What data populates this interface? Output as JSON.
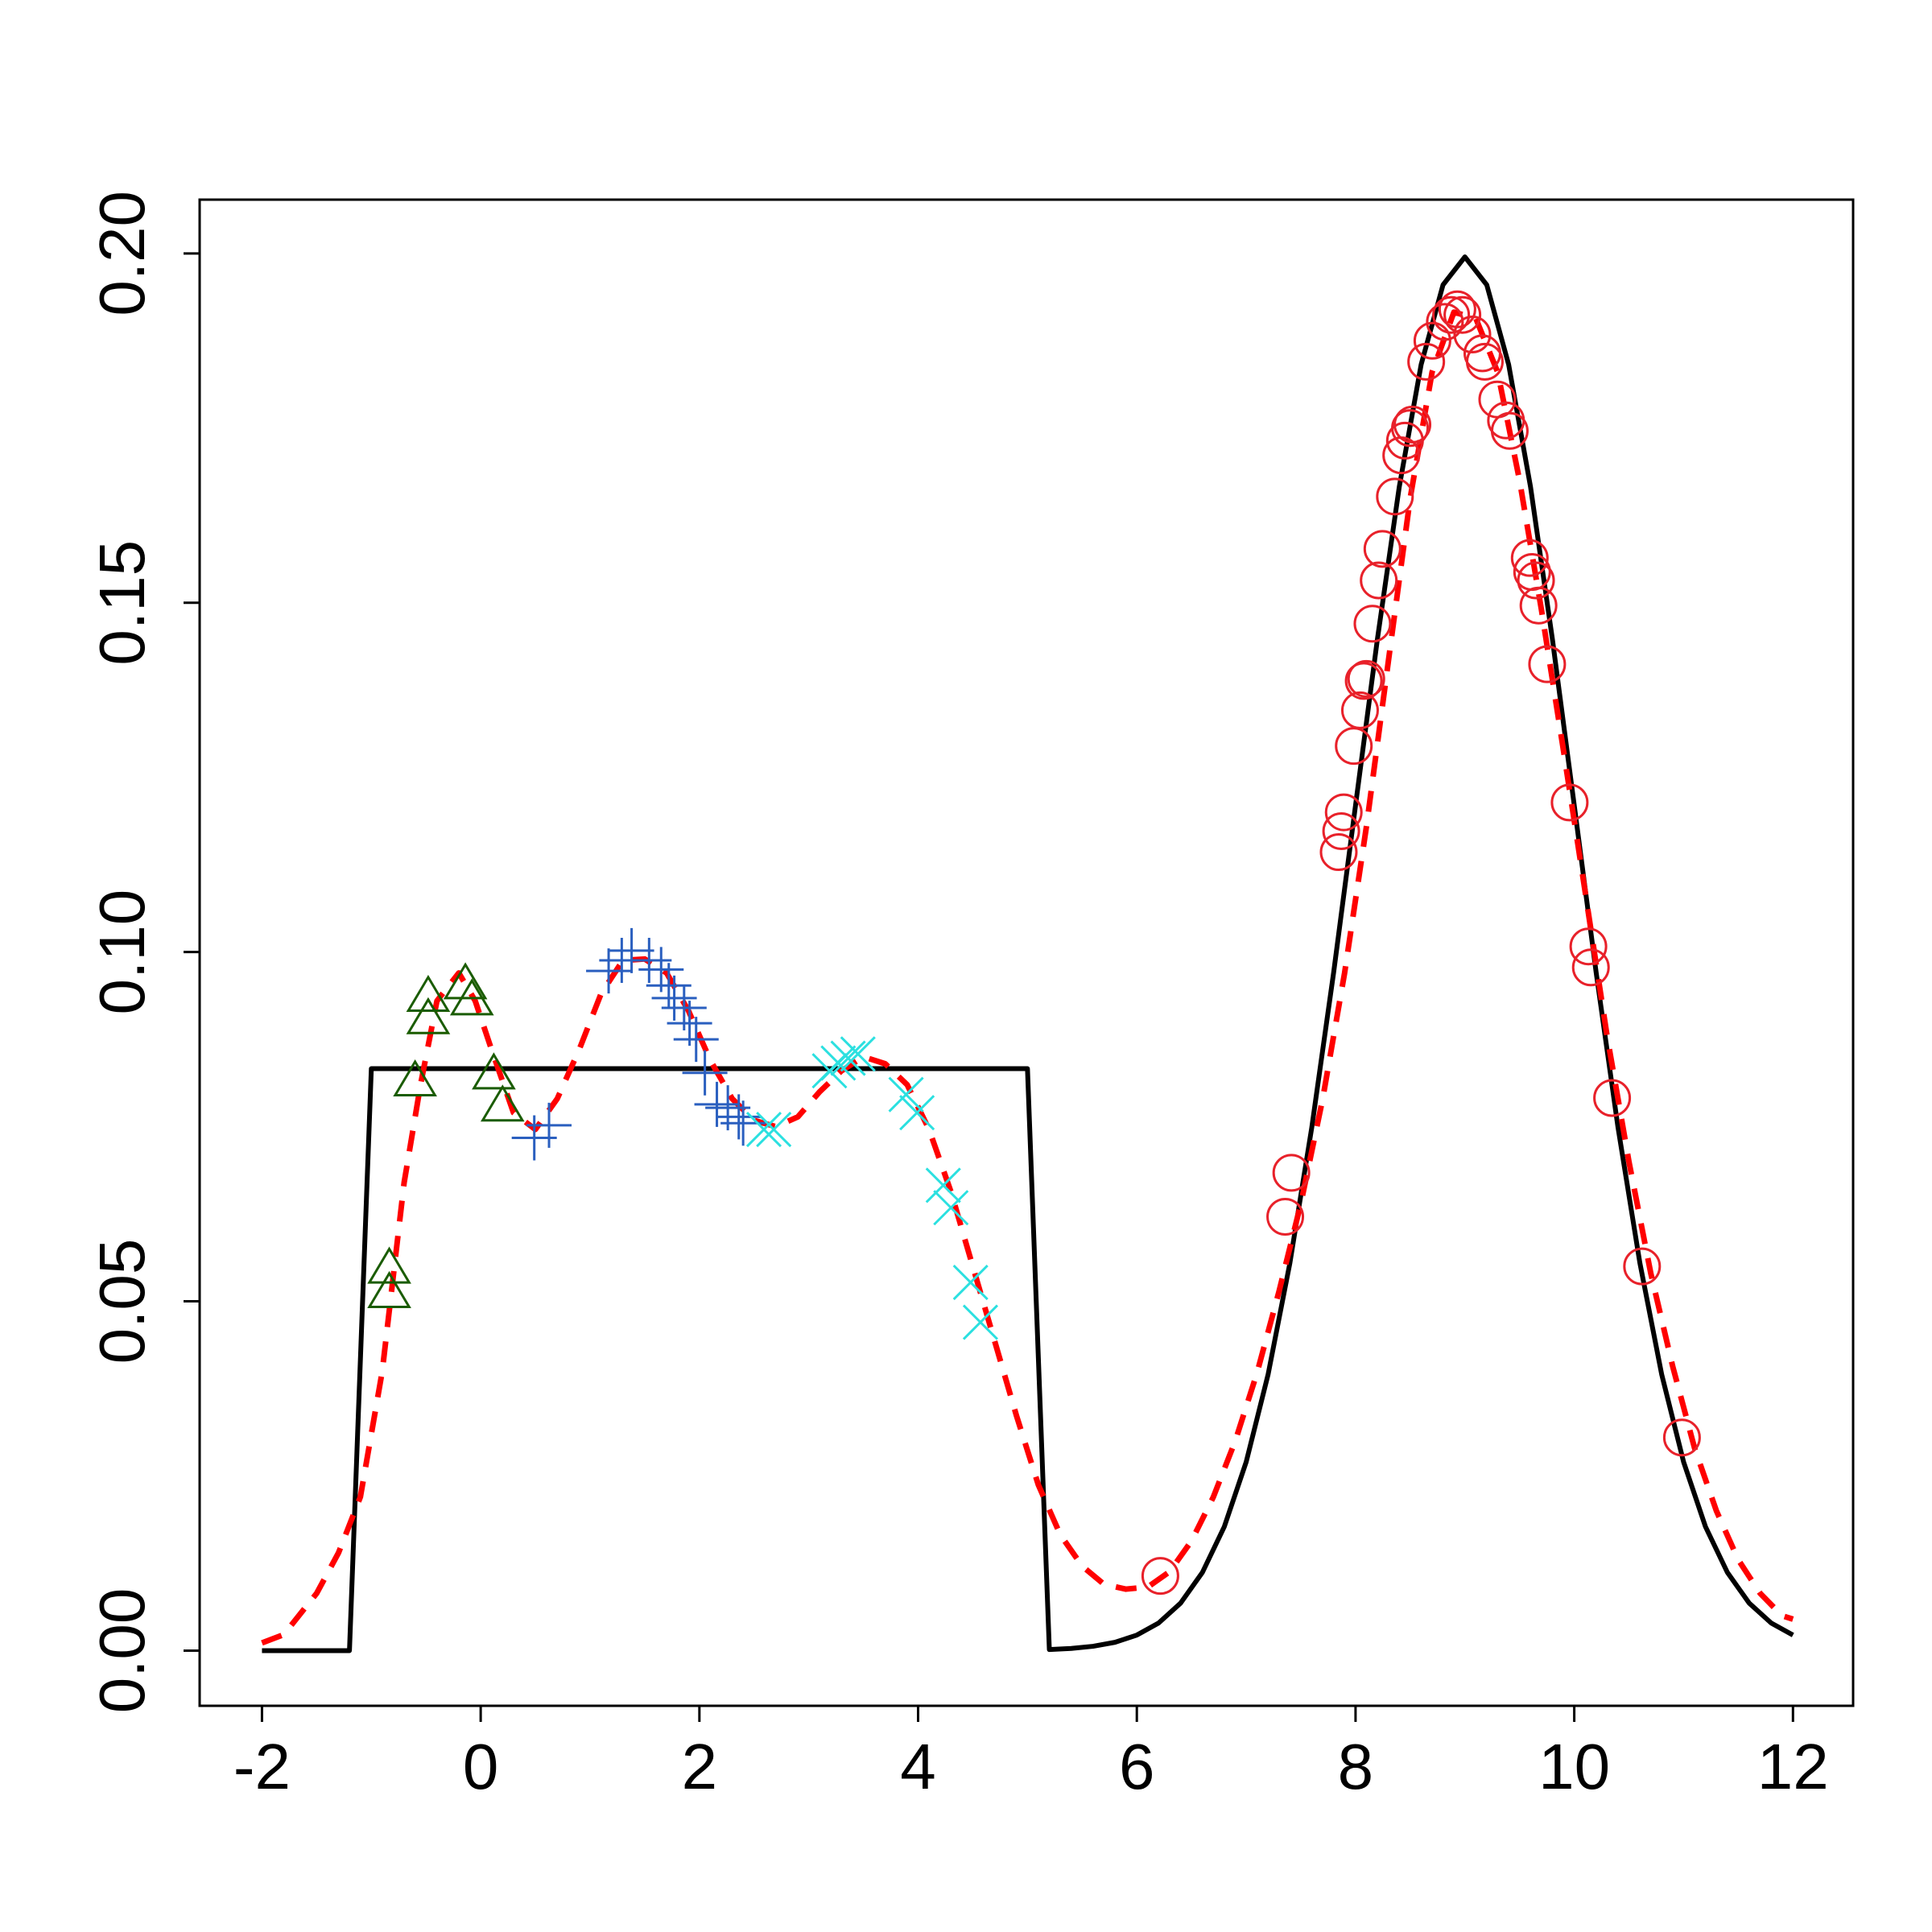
{
  "chart_data": {
    "type": "line",
    "xlim": [
      -2.57,
      12.55
    ],
    "ylim": [
      -0.0079,
      0.2077
    ],
    "xticks": [
      -2,
      0,
      2,
      4,
      6,
      8,
      10,
      12
    ],
    "yticks": [
      {
        "value": 0,
        "label": "0.00"
      },
      0.05,
      {
        "value": 0.1,
        "label": "0.10"
      },
      0.15,
      {
        "value": 0.2,
        "label": "0.20"
      }
    ],
    "series": [
      {
        "color": "#000000",
        "style": "solid",
        "x": [
          -2,
          -1.2,
          -1,
          5,
          5.2,
          5.4,
          5.6,
          5.8,
          6,
          6.2,
          6.4,
          6.6,
          6.8,
          7,
          7.2,
          7.4,
          7.6,
          7.8,
          8,
          8.2,
          8.4,
          8.6,
          8.8,
          9,
          9.2,
          9.4,
          9.6,
          9.8,
          10,
          10.2,
          10.4,
          10.6,
          10.8,
          11,
          11.2,
          11.4,
          11.6,
          11.8,
          12
        ],
        "values": [
          0,
          0,
          0.0833,
          0.0833,
          0.00015,
          0.00031,
          0.00062,
          0.00119,
          0.00222,
          0.00396,
          0.00679,
          0.0112,
          0.01774,
          0.027,
          0.0395,
          0.0555,
          0.0749,
          0.0971,
          0.121,
          0.1448,
          0.1666,
          0.1841,
          0.1955,
          0.1995,
          0.1955,
          0.1841,
          0.1666,
          0.1448,
          0.121,
          0.0971,
          0.0749,
          0.0555,
          0.0395,
          0.027,
          0.01774,
          0.0112,
          0.00679,
          0.00396,
          0.00222
        ]
      },
      {
        "color": "#ff0000",
        "style": "dashed",
        "x": [
          -2,
          -1.8,
          -1.5,
          -1.3,
          -1.1,
          -0.9,
          -0.7,
          -0.55,
          -0.4,
          -0.3,
          -0.2,
          -0.05,
          0.1,
          0.3,
          0.5,
          0.7,
          0.9,
          1.1,
          1.3,
          1.5,
          1.7,
          1.9,
          2.1,
          2.3,
          2.5,
          2.7,
          2.9,
          3.1,
          3.3,
          3.5,
          3.7,
          3.9,
          4.1,
          4.3,
          4.5,
          4.7,
          4.9,
          5.1,
          5.3,
          5.5,
          5.7,
          5.9,
          6.1,
          6.3,
          6.5,
          6.7,
          6.9,
          7.1,
          7.3,
          7.5,
          7.7,
          7.9,
          8.1,
          8.3,
          8.5,
          8.7,
          8.9,
          9.1,
          9.3,
          9.5,
          9.7,
          9.9,
          10.1,
          10.3,
          10.5,
          10.7,
          10.9,
          11.1,
          11.3,
          11.5,
          11.7,
          11.9,
          12
        ],
        "values": [
          0.0011,
          0.0023,
          0.0082,
          0.014,
          0.022,
          0.04,
          0.067,
          0.081,
          0.093,
          0.095,
          0.097,
          0.093,
          0.086,
          0.077,
          0.0746,
          0.079,
          0.086,
          0.094,
          0.0988,
          0.099,
          0.097,
          0.0916,
          0.0845,
          0.079,
          0.0759,
          0.075,
          0.0764,
          0.08,
          0.083,
          0.085,
          0.084,
          0.081,
          0.0746,
          0.0657,
          0.055,
          0.0443,
          0.0336,
          0.0237,
          0.0166,
          0.0121,
          0.0095,
          0.0088,
          0.0091,
          0.0113,
          0.0157,
          0.022,
          0.03,
          0.0398,
          0.0514,
          0.064,
          0.079,
          0.097,
          0.118,
          0.1416,
          0.165,
          0.183,
          0.1916,
          0.1907,
          0.183,
          0.1675,
          0.149,
          0.129,
          0.1086,
          0.088,
          0.07,
          0.054,
          0.0407,
          0.029,
          0.02,
          0.013,
          0.0082,
          0.005,
          0.0045
        ]
      },
      {
        "color": "#1a5c00",
        "style": "points",
        "marker": "triangle",
        "x": [
          -0.836,
          -0.836,
          -0.6,
          -0.48,
          -0.48,
          -0.14,
          -0.08,
          0.12,
          0.2
        ],
        "values": [
          0.0545,
          0.051,
          0.0813,
          0.0902,
          0.0934,
          0.0952,
          0.0929,
          0.0823,
          0.0777
        ]
      },
      {
        "color": "#2a5fbf",
        "style": "points",
        "marker": "plus",
        "x": [
          0.49,
          0.625,
          1.17,
          1.29,
          1.38,
          1.54,
          1.65,
          1.72,
          1.77,
          1.86,
          1.91,
          1.97,
          2.05,
          2.16,
          2.26,
          2.36,
          2.4
        ],
        "values": [
          0.0734,
          0.0752,
          0.0973,
          0.0988,
          0.1002,
          0.0988,
          0.0975,
          0.0952,
          0.0934,
          0.092,
          0.0898,
          0.0875,
          0.0827,
          0.0782,
          0.0777,
          0.0764,
          0.0755
        ]
      },
      {
        "color": "#2be0e0",
        "style": "points",
        "marker": "cross",
        "x": [
          2.59,
          2.68,
          3.19,
          3.27,
          3.36,
          3.45,
          3.89,
          3.99,
          4.23,
          4.3,
          4.48,
          4.57
        ],
        "values": [
          0.0746,
          0.0746,
          0.083,
          0.0841,
          0.0848,
          0.0854,
          0.0796,
          0.077,
          0.0666,
          0.0634,
          0.0527,
          0.047
        ]
      },
      {
        "color": "#e8212a",
        "style": "points",
        "marker": "circle",
        "x": [
          6.215,
          7.357,
          7.413,
          7.846,
          7.869,
          7.892,
          7.984,
          8.041,
          8.075,
          8.098,
          8.155,
          8.212,
          8.246,
          8.36,
          8.418,
          8.452,
          8.498,
          8.52,
          8.646,
          8.703,
          8.817,
          8.874,
          8.931,
          8.977,
          9.068,
          9.16,
          9.182,
          9.296,
          9.376,
          9.41,
          9.593,
          9.615,
          9.65,
          9.673,
          9.752,
          9.958,
          10.129,
          10.152,
          10.346,
          10.62,
          10.985
        ],
        "values": [
          0.0107,
          0.0621,
          0.0684,
          0.1143,
          0.1173,
          0.12,
          0.1295,
          0.1346,
          0.1388,
          0.1391,
          0.147,
          0.1532,
          0.1577,
          0.1652,
          0.1711,
          0.1732,
          0.175,
          0.1755,
          0.1845,
          0.1875,
          0.1902,
          0.1912,
          0.192,
          0.1912,
          0.1884,
          0.1857,
          0.1845,
          0.1791,
          0.1761,
          0.1746,
          0.1564,
          0.1544,
          0.1532,
          0.1496,
          0.1412,
          0.1214,
          0.1008,
          0.0978,
          0.0791,
          0.055,
          0.0305
        ]
      }
    ]
  }
}
